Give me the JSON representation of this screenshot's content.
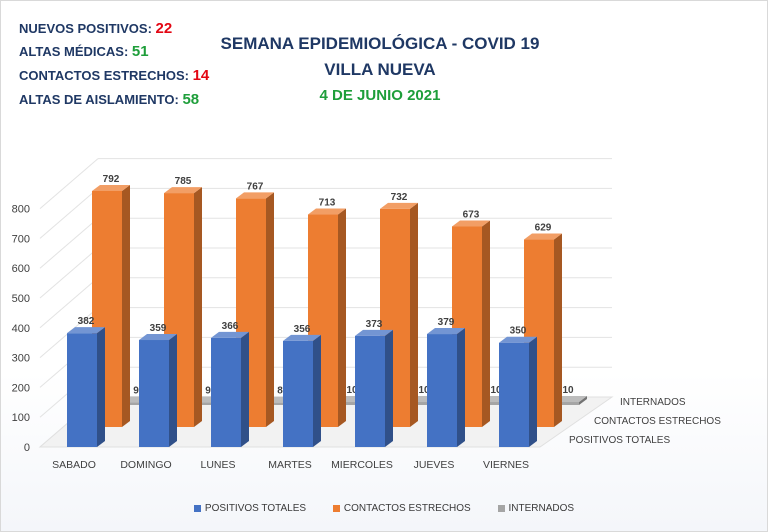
{
  "summary": [
    {
      "label": "NUEVOS POSITIVOS: ",
      "value": "22",
      "color": "#e30613"
    },
    {
      "label": "ALTAS MÉDICAS: ",
      "value": "51",
      "color": "#1e9e3a"
    },
    {
      "label": "CONTACTOS ESTRECHOS: ",
      "value": "14",
      "color": "#e30613"
    },
    {
      "label": "ALTAS DE AISLAMIENTO: ",
      "value": "58",
      "color": "#1e9e3a"
    }
  ],
  "header": {
    "line1": "SEMANA EPIDEMIOLÓGICA - COVID 19",
    "line2": "VILLA NUEVA",
    "line3": "4 DE JUNIO 2021"
  },
  "chart_data": {
    "type": "bar",
    "categories": [
      "SABADO",
      "DOMINGO",
      "LUNES",
      "MARTES",
      "MIERCOLES",
      "JUEVES",
      "VIERNES"
    ],
    "series": [
      {
        "name": "POSITIVOS TOTALES",
        "values": [
          382,
          359,
          366,
          356,
          373,
          379,
          350
        ],
        "color": "#4472c4",
        "data_labels": [
          "382",
          "359",
          "366",
          "356",
          "373",
          "379",
          "350"
        ]
      },
      {
        "name": "CONTACTOS ESTRECHOS",
        "values": [
          792,
          785,
          767,
          713,
          732,
          673,
          629
        ],
        "color": "#ed7d31",
        "data_labels": [
          "792",
          "785",
          "767",
          "713",
          "732",
          "673",
          "629"
        ]
      },
      {
        "name": "INTERNADOS",
        "values": [
          9,
          9,
          8,
          10,
          10,
          10,
          10
        ],
        "color": "#a5a5a5",
        "data_labels": [
          "9",
          "9",
          "8",
          "10",
          "10",
          "10",
          "10"
        ]
      }
    ],
    "depth_labels": [
      "INTERNADOS",
      "CONTACTOS ESTRECHOS",
      "POSITIVOS TOTALES"
    ],
    "yticks": [
      0,
      100,
      200,
      300,
      400,
      500,
      600,
      700,
      800
    ],
    "ylim": [
      0,
      800
    ],
    "grid": true,
    "legend": "bottom",
    "style": "3d-column"
  }
}
